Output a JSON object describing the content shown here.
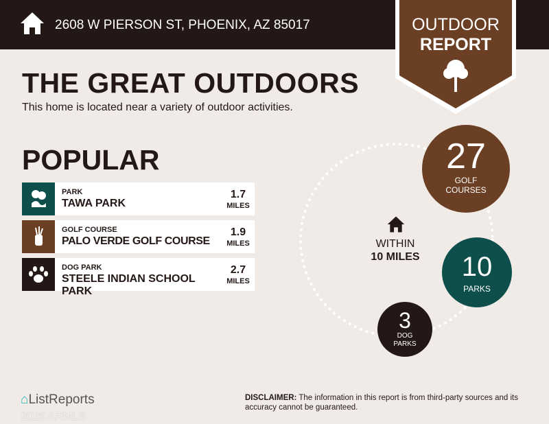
{
  "header": {
    "address": "2608 W PIERSON ST, PHOENIX, AZ 85017",
    "badge_line1": "OUTDOOR",
    "badge_line2": "REPORT"
  },
  "title": "THE GREAT OUTDOORS",
  "subtitle": "This home is located near a variety of outdoor activities.",
  "popular": {
    "heading": "POPULAR",
    "items": [
      {
        "category": "PARK",
        "name": "TAWA PARK",
        "distance": "1.7",
        "unit": "MILES",
        "icon": "park-icon",
        "color": "#0e4f4b"
      },
      {
        "category": "GOLF COURSE",
        "name": "PALO VERDE GOLF COURSE",
        "distance": "1.9",
        "unit": "MILES",
        "icon": "golf-bag-icon",
        "color": "#6b3f24"
      },
      {
        "category": "DOG PARK",
        "name": "STEELE INDIAN SCHOOL PARK",
        "distance": "2.7",
        "unit": "MILES",
        "icon": "paw-icon",
        "color": "#231815"
      }
    ]
  },
  "summary": {
    "within_label": "WITHIN",
    "radius": "10 MILES",
    "golf": {
      "count": "27",
      "label1": "GOLF",
      "label2": "COURSES",
      "color": "#6b3f24"
    },
    "parks": {
      "count": "10",
      "label1": "PARKS",
      "color": "#0e4f4b"
    },
    "dog": {
      "count": "3",
      "label1": "DOG",
      "label2": "PARKS",
      "color": "#231815"
    }
  },
  "footer": {
    "logo": "ListReports",
    "watermark": "2026 ARMLS",
    "disclaimer_label": "DISCLAIMER:",
    "disclaimer": " The information in this report is from third-party sources and its accuracy cannot be guaranteed."
  }
}
